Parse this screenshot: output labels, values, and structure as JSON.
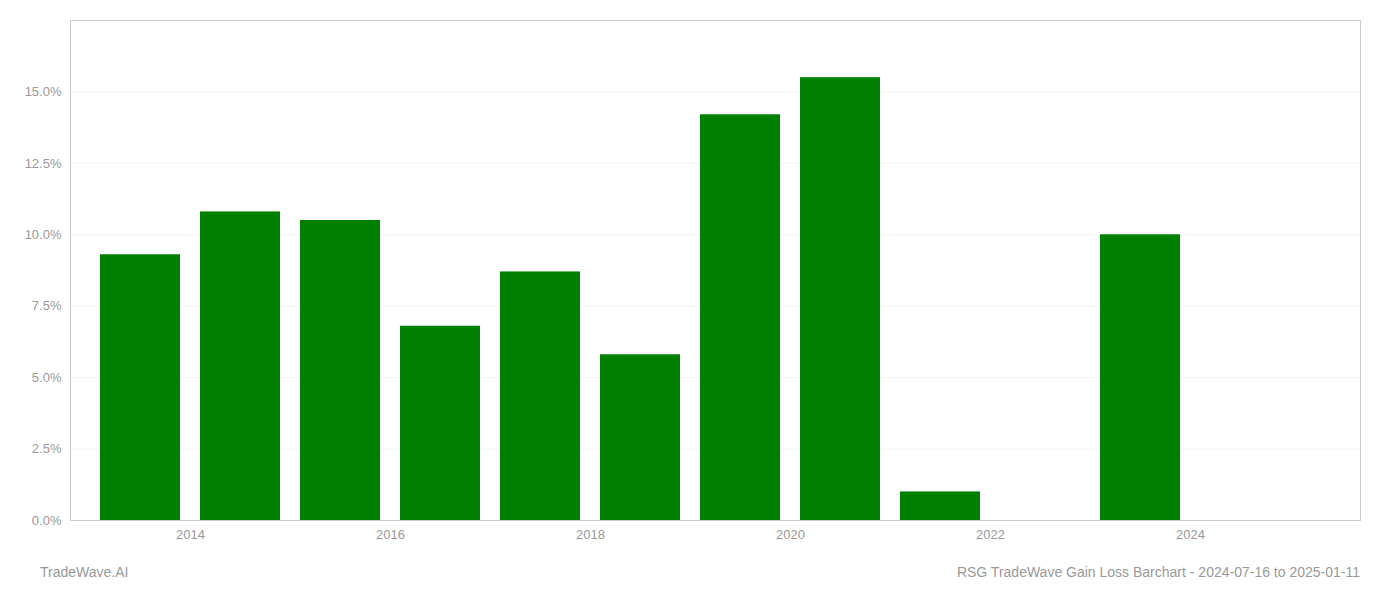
{
  "chart_data": {
    "type": "bar",
    "x": [
      2013,
      2014,
      2015,
      2016,
      2017,
      2018,
      2019,
      2020,
      2021,
      2023
    ],
    "values": [
      0.093,
      0.108,
      0.105,
      0.068,
      0.087,
      0.058,
      0.142,
      0.155,
      0.01,
      0.1
    ],
    "color": "#008000",
    "xlim": [
      2012.3,
      2025.2
    ],
    "xticks": [
      {
        "value": 2013.5,
        "label": "2014"
      },
      {
        "value": 2015.5,
        "label": "2016"
      },
      {
        "value": 2017.5,
        "label": "2018"
      },
      {
        "value": 2019.5,
        "label": "2020"
      },
      {
        "value": 2021.5,
        "label": "2022"
      },
      {
        "value": 2023.5,
        "label": "2024"
      }
    ],
    "ylim": [
      0,
      0.175
    ],
    "yticks": [
      {
        "value": 0.0,
        "label": "0.0%"
      },
      {
        "value": 0.025,
        "label": "2.5%"
      },
      {
        "value": 0.05,
        "label": "5.0%"
      },
      {
        "value": 0.075,
        "label": "7.5%"
      },
      {
        "value": 0.1,
        "label": "10.0%"
      },
      {
        "value": 0.125,
        "label": "12.5%"
      },
      {
        "value": 0.15,
        "label": "15.0%"
      }
    ],
    "grid": true,
    "annotations": [
      "TradeWave.AI",
      "RSG TradeWave Gain Loss Barchart - 2024-07-16 to 2025-01-11"
    ]
  }
}
